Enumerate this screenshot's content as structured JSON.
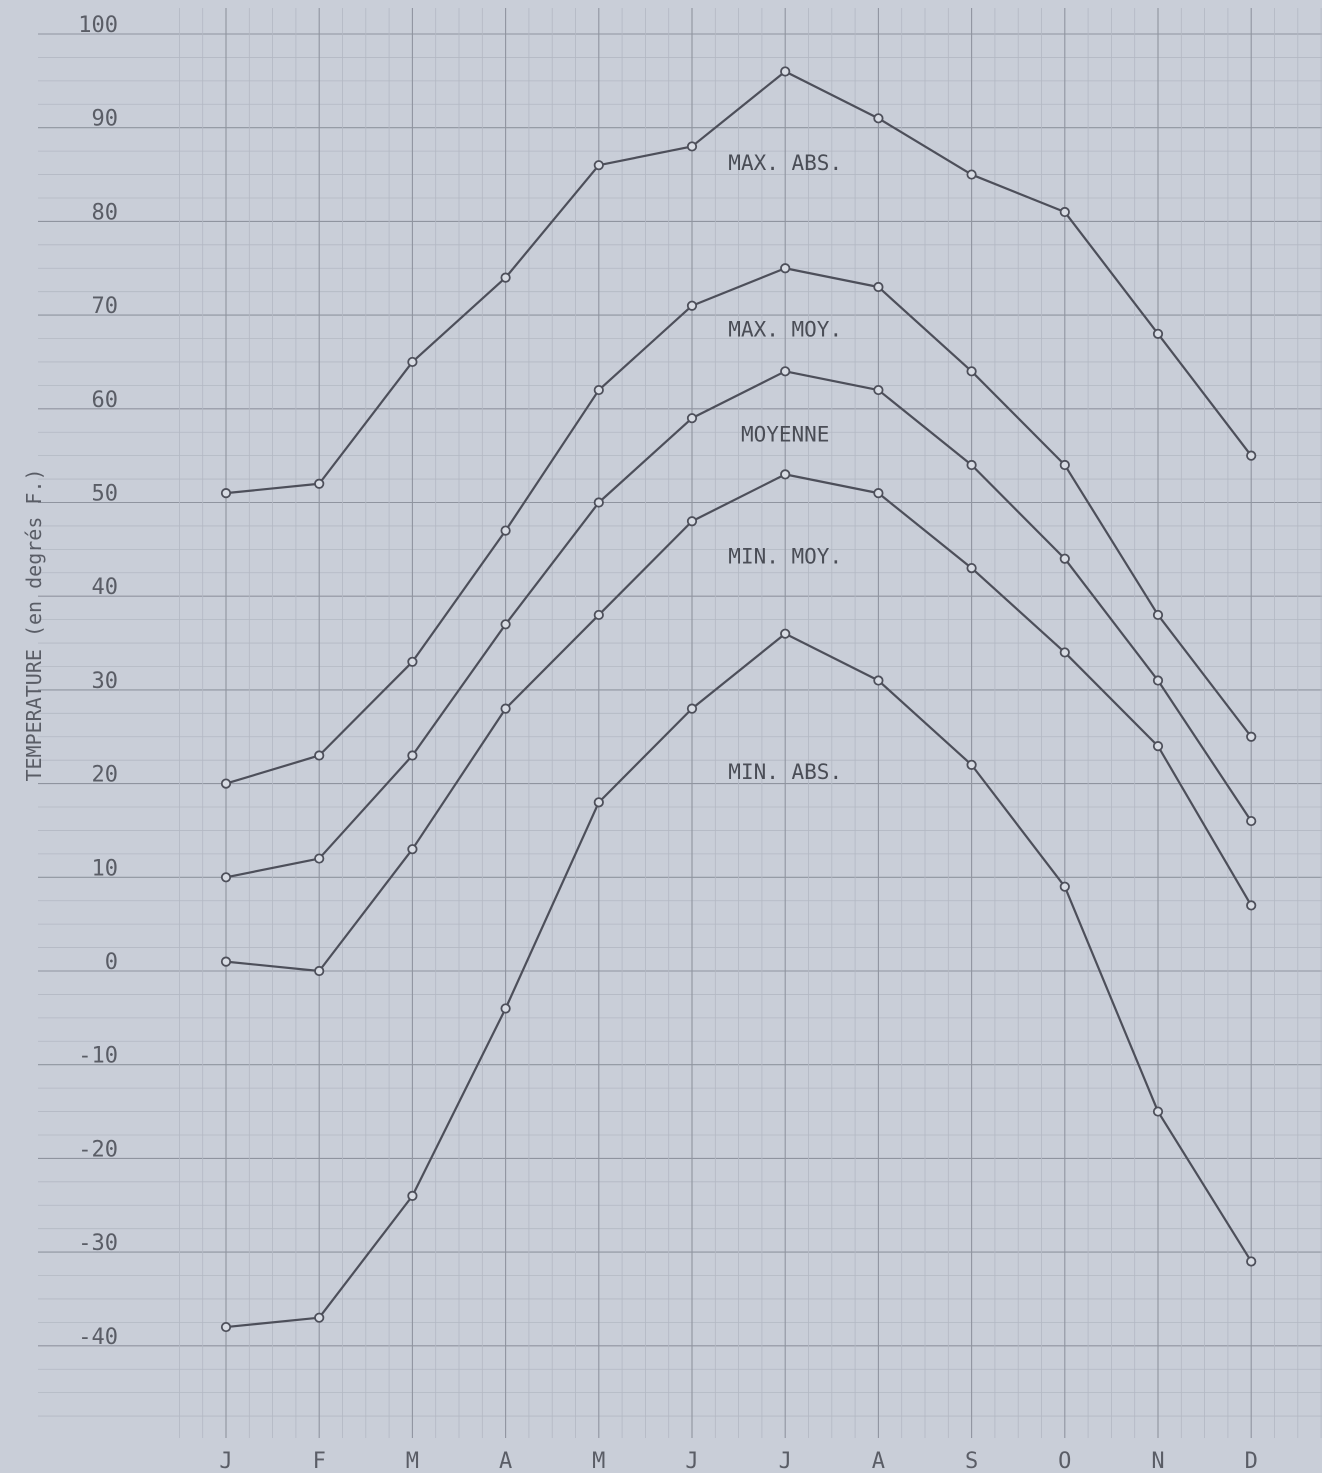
{
  "chart_data": {
    "type": "line",
    "ylabel": "TEMPERATURE (en degrés F.)",
    "xlabel": "",
    "title": "",
    "categories": [
      "J",
      "F",
      "M",
      "A",
      "M",
      "J",
      "J",
      "A",
      "S",
      "O",
      "N",
      "D"
    ],
    "yticks": [
      "100",
      "90",
      "80",
      "70",
      "60",
      "50",
      "40",
      "30",
      "20",
      "10",
      "0",
      "-10",
      "-20",
      "-30",
      "-40"
    ],
    "ylim": [
      -50,
      100
    ],
    "grid": true,
    "series_labels": [
      {
        "text": "MAX. ABS.",
        "x": 6,
        "y": 85.5
      },
      {
        "text": "MAX. MOY.",
        "x": 6,
        "y": 67.7
      },
      {
        "text": "MOYENNE",
        "x": 6,
        "y": 56.5
      },
      {
        "text": "MIN. MOY.",
        "x": 6,
        "y": 43.5
      },
      {
        "text": "MIN. ABS.",
        "x": 6,
        "y": 20.5
      }
    ],
    "series": [
      {
        "name": "MAX. ABS.",
        "values": [
          51,
          52,
          65,
          74,
          86,
          88,
          96,
          91,
          85,
          81,
          68,
          55
        ]
      },
      {
        "name": "MAX. MOY.",
        "values": [
          20,
          23,
          33,
          47,
          62,
          71,
          75,
          73,
          64,
          54,
          38,
          25
        ]
      },
      {
        "name": "MOYENNE",
        "values": [
          10,
          12,
          23,
          37,
          50,
          59,
          64,
          62,
          54,
          44,
          31,
          16
        ]
      },
      {
        "name": "MIN. MOY.",
        "values": [
          1,
          0,
          13,
          28,
          38,
          48,
          53,
          51,
          43,
          34,
          24,
          7
        ]
      },
      {
        "name": "MIN. ABS.",
        "values": [
          -38,
          -37,
          -24,
          -4,
          18,
          28,
          36,
          31,
          22,
          9,
          -15,
          -31
        ]
      }
    ]
  }
}
